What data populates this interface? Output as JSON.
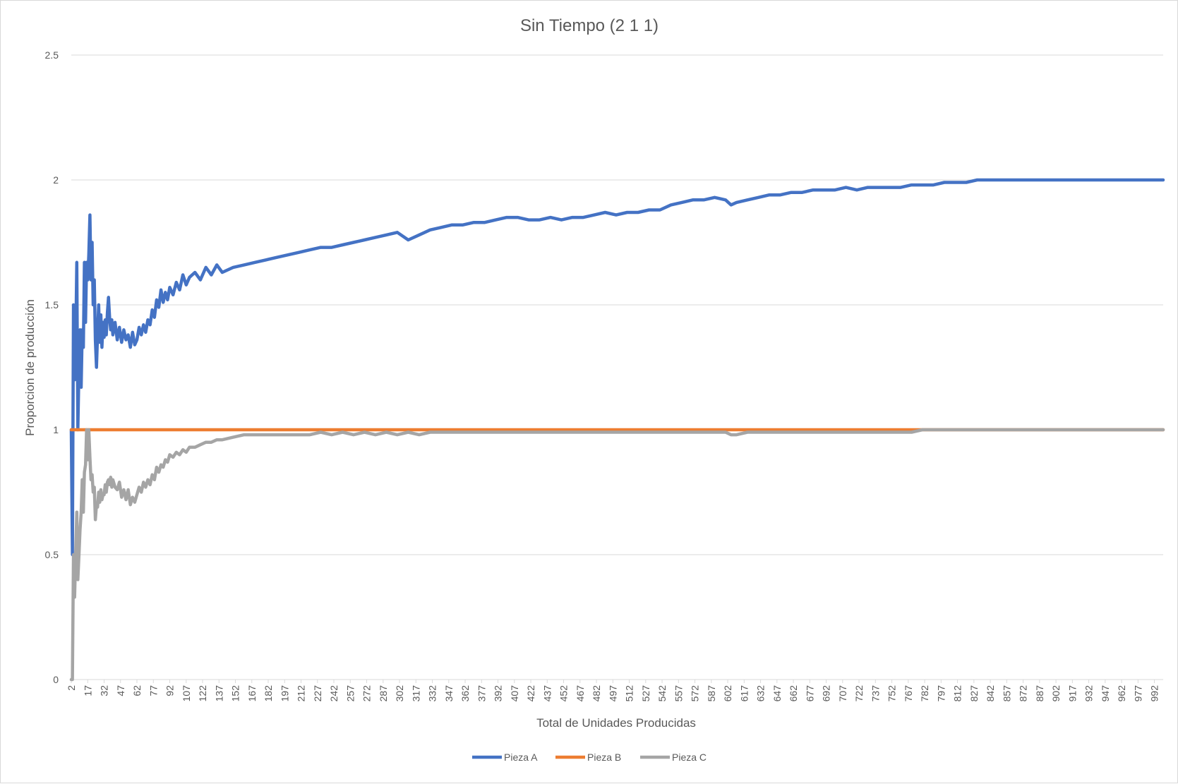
{
  "chart_data": {
    "type": "line",
    "title": "Sin Tiempo (2 1 1)",
    "xlabel": "Total de Unidades Producidas",
    "ylabel": "Proporcion de producción",
    "ylim": [
      0,
      2.5
    ],
    "yticks": [
      "0",
      "0.5",
      "1",
      "1.5",
      "2",
      "2.5"
    ],
    "xlim": [
      2,
      1000
    ],
    "xticks": [
      2,
      17,
      32,
      47,
      62,
      77,
      92,
      107,
      122,
      137,
      152,
      167,
      182,
      197,
      212,
      227,
      242,
      257,
      272,
      287,
      302,
      317,
      332,
      347,
      362,
      377,
      392,
      407,
      422,
      437,
      452,
      467,
      482,
      497,
      512,
      527,
      542,
      557,
      572,
      587,
      602,
      617,
      632,
      647,
      662,
      677,
      692,
      707,
      722,
      737,
      752,
      767,
      782,
      797,
      812,
      827,
      842,
      857,
      872,
      887,
      902,
      917,
      932,
      947,
      962,
      977,
      992
    ],
    "grid": true,
    "legend_position": "bottom",
    "series": [
      {
        "name": "Pieza A",
        "color": "#4472c4",
        "x": [
          2,
          3,
          4,
          5,
          6,
          7,
          8,
          9,
          10,
          11,
          12,
          13,
          14,
          15,
          16,
          17,
          18,
          19,
          20,
          21,
          22,
          23,
          24,
          25,
          26,
          27,
          28,
          29,
          30,
          31,
          32,
          33,
          34,
          35,
          36,
          37,
          38,
          39,
          40,
          42,
          44,
          46,
          48,
          50,
          52,
          54,
          56,
          58,
          60,
          62,
          64,
          66,
          68,
          70,
          72,
          74,
          76,
          78,
          80,
          82,
          84,
          86,
          88,
          90,
          92,
          95,
          98,
          101,
          104,
          107,
          110,
          115,
          120,
          125,
          130,
          135,
          140,
          150,
          160,
          170,
          180,
          190,
          200,
          210,
          220,
          230,
          240,
          250,
          260,
          270,
          280,
          290,
          300,
          310,
          320,
          330,
          340,
          350,
          360,
          370,
          380,
          390,
          400,
          410,
          420,
          430,
          440,
          450,
          460,
          470,
          480,
          490,
          500,
          510,
          520,
          530,
          540,
          550,
          560,
          570,
          580,
          590,
          600,
          605,
          610,
          620,
          630,
          640,
          650,
          660,
          670,
          680,
          690,
          700,
          710,
          720,
          730,
          740,
          750,
          760,
          770,
          780,
          790,
          800,
          810,
          820,
          830,
          840,
          850,
          860,
          870,
          880,
          890,
          900,
          910,
          920,
          930,
          940,
          950,
          960,
          970,
          980,
          990,
          1000
        ],
        "values": [
          1.0,
          0.5,
          1.5,
          1.2,
          1.33,
          1.67,
          1.0,
          1.25,
          1.4,
          1.17,
          1.4,
          1.33,
          1.67,
          1.43,
          1.67,
          1.6,
          1.7,
          1.86,
          1.6,
          1.75,
          1.5,
          1.6,
          1.36,
          1.25,
          1.38,
          1.5,
          1.35,
          1.46,
          1.33,
          1.43,
          1.37,
          1.44,
          1.38,
          1.47,
          1.53,
          1.45,
          1.4,
          1.44,
          1.38,
          1.43,
          1.36,
          1.41,
          1.35,
          1.4,
          1.36,
          1.38,
          1.33,
          1.39,
          1.34,
          1.36,
          1.41,
          1.38,
          1.42,
          1.39,
          1.44,
          1.42,
          1.48,
          1.45,
          1.52,
          1.49,
          1.56,
          1.51,
          1.55,
          1.52,
          1.57,
          1.54,
          1.59,
          1.56,
          1.62,
          1.58,
          1.61,
          1.63,
          1.6,
          1.65,
          1.62,
          1.66,
          1.63,
          1.65,
          1.66,
          1.67,
          1.68,
          1.69,
          1.7,
          1.71,
          1.72,
          1.73,
          1.73,
          1.74,
          1.75,
          1.76,
          1.77,
          1.78,
          1.79,
          1.76,
          1.78,
          1.8,
          1.81,
          1.82,
          1.82,
          1.83,
          1.83,
          1.84,
          1.85,
          1.85,
          1.84,
          1.84,
          1.85,
          1.84,
          1.85,
          1.85,
          1.86,
          1.87,
          1.86,
          1.87,
          1.87,
          1.88,
          1.88,
          1.9,
          1.91,
          1.92,
          1.92,
          1.93,
          1.92,
          1.9,
          1.91,
          1.92,
          1.93,
          1.94,
          1.94,
          1.95,
          1.95,
          1.96,
          1.96,
          1.96,
          1.97,
          1.96,
          1.97,
          1.97,
          1.97,
          1.97,
          1.98,
          1.98,
          1.98,
          1.99,
          1.99,
          1.99,
          2.0,
          2.0,
          2.0,
          2.0,
          2.0,
          2.0,
          2.0,
          2.0,
          2.0,
          2.0,
          2.0,
          2.0,
          2.0,
          2.0,
          2.0,
          2.0,
          2.0,
          2.0
        ]
      },
      {
        "name": "Pieza B",
        "color": "#ed7d31",
        "x": [
          2,
          1000
        ],
        "values": [
          1.0,
          1.0
        ]
      },
      {
        "name": "Pieza C",
        "color": "#a5a5a5",
        "x": [
          2,
          3,
          4,
          5,
          6,
          7,
          8,
          9,
          10,
          11,
          12,
          13,
          14,
          15,
          16,
          17,
          18,
          19,
          20,
          21,
          22,
          23,
          24,
          25,
          26,
          27,
          28,
          29,
          30,
          31,
          32,
          33,
          34,
          35,
          36,
          37,
          38,
          39,
          40,
          42,
          44,
          46,
          48,
          50,
          52,
          54,
          56,
          58,
          60,
          62,
          64,
          66,
          68,
          70,
          72,
          74,
          76,
          78,
          80,
          82,
          84,
          86,
          88,
          90,
          92,
          95,
          98,
          101,
          104,
          107,
          110,
          115,
          120,
          125,
          130,
          135,
          140,
          150,
          160,
          170,
          180,
          190,
          200,
          210,
          220,
          230,
          240,
          250,
          260,
          270,
          280,
          290,
          300,
          310,
          320,
          330,
          340,
          350,
          360,
          370,
          380,
          390,
          400,
          410,
          420,
          430,
          440,
          450,
          460,
          470,
          480,
          490,
          500,
          510,
          520,
          530,
          540,
          550,
          560,
          570,
          580,
          590,
          600,
          605,
          610,
          620,
          630,
          640,
          650,
          660,
          670,
          680,
          690,
          700,
          710,
          720,
          730,
          740,
          750,
          760,
          770,
          780,
          790,
          800,
          810,
          820,
          830,
          840,
          850,
          860,
          870,
          880,
          890,
          900,
          910,
          920,
          930,
          940,
          950,
          960,
          970,
          980,
          990,
          1000
        ],
        "values": [
          0.0,
          0.0,
          0.5,
          0.33,
          0.5,
          0.67,
          0.4,
          0.5,
          0.6,
          0.67,
          0.8,
          0.67,
          0.83,
          0.86,
          1.0,
          0.88,
          1.0,
          0.89,
          0.8,
          0.82,
          0.75,
          0.77,
          0.64,
          0.7,
          0.69,
          0.75,
          0.71,
          0.76,
          0.72,
          0.74,
          0.74,
          0.78,
          0.75,
          0.79,
          0.8,
          0.78,
          0.81,
          0.77,
          0.8,
          0.77,
          0.76,
          0.79,
          0.73,
          0.76,
          0.72,
          0.76,
          0.7,
          0.73,
          0.71,
          0.74,
          0.77,
          0.75,
          0.79,
          0.77,
          0.8,
          0.78,
          0.82,
          0.8,
          0.85,
          0.83,
          0.86,
          0.85,
          0.88,
          0.87,
          0.9,
          0.89,
          0.91,
          0.9,
          0.92,
          0.91,
          0.93,
          0.93,
          0.94,
          0.95,
          0.95,
          0.96,
          0.96,
          0.97,
          0.98,
          0.98,
          0.98,
          0.98,
          0.98,
          0.98,
          0.98,
          0.99,
          0.98,
          0.99,
          0.98,
          0.99,
          0.98,
          0.99,
          0.98,
          0.99,
          0.98,
          0.99,
          0.99,
          0.99,
          0.99,
          0.99,
          0.99,
          0.99,
          0.99,
          0.99,
          0.99,
          0.99,
          0.99,
          0.99,
          0.99,
          0.99,
          0.99,
          0.99,
          0.99,
          0.99,
          0.99,
          0.99,
          0.99,
          0.99,
          0.99,
          0.99,
          0.99,
          0.99,
          0.99,
          0.98,
          0.98,
          0.99,
          0.99,
          0.99,
          0.99,
          0.99,
          0.99,
          0.99,
          0.99,
          0.99,
          0.99,
          0.99,
          0.99,
          0.99,
          0.99,
          0.99,
          0.99,
          1.0,
          1.0,
          1.0,
          1.0,
          1.0,
          1.0,
          1.0,
          1.0,
          1.0,
          1.0,
          1.0,
          1.0,
          1.0,
          1.0,
          1.0,
          1.0,
          1.0,
          1.0,
          1.0,
          1.0,
          1.0,
          1.0,
          1.0
        ]
      }
    ]
  }
}
